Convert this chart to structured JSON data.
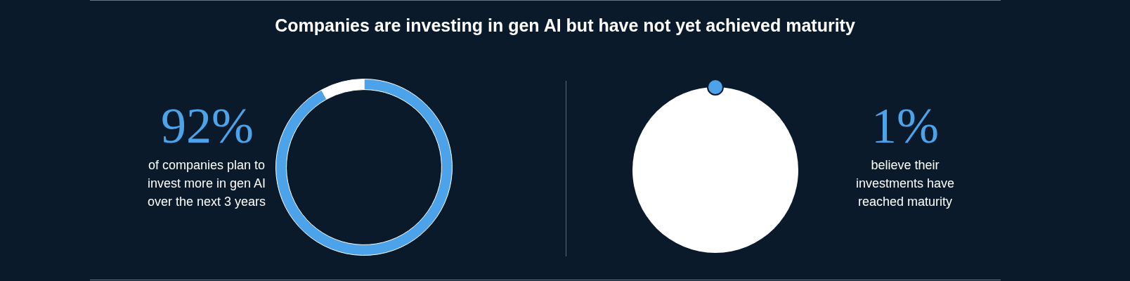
{
  "chart_data": [
    {
      "type": "donut",
      "title": "Companies are investing in gen AI but have not yet achieved maturity",
      "categories": [
        null,
        null
      ],
      "values": [
        92,
        8
      ],
      "colors": [
        "#4da3ea",
        "#ffffff"
      ],
      "annotations": [
        "92%",
        "of companies plan to invest more in gen AI over the next 3 years"
      ]
    },
    {
      "type": "other",
      "annotations": [
        "1%",
        "believe their investments have reached maturity"
      ]
    }
  ]
}
